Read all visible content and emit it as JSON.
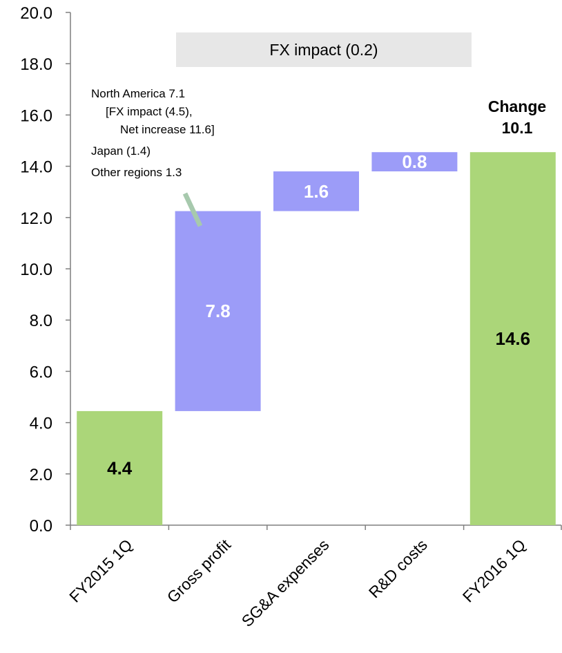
{
  "chart_data": {
    "type": "waterfall",
    "ylim": [
      0,
      20
    ],
    "y_ticks": [
      "0.0",
      "2.0",
      "4.0",
      "6.0",
      "8.0",
      "10.0",
      "12.0",
      "14.0",
      "16.0",
      "18.0",
      "20.0"
    ],
    "bars": [
      {
        "category": "FY2015 1Q",
        "start": 0,
        "end": 4.45,
        "label": "4.4",
        "kind": "total"
      },
      {
        "category": "Gross profit",
        "start": 4.45,
        "end": 12.25,
        "label": "7.8",
        "kind": "delta"
      },
      {
        "category": "SG&A expenses",
        "start": 12.25,
        "end": 13.8,
        "label": "1.6",
        "kind": "delta"
      },
      {
        "category": "R&D costs",
        "start": 13.8,
        "end": 14.55,
        "label": "0.8",
        "kind": "delta"
      },
      {
        "category": "FY2016 1Q",
        "start": 0,
        "end": 14.55,
        "label": "14.6",
        "kind": "total"
      }
    ],
    "fx_banner": "FX impact (0.2)",
    "annotation_lines": [
      "North America 7.1",
      "[FX impact (4.5),",
      "Net increase 11.6]",
      "Japan (1.4)",
      "Other regions 1.3"
    ],
    "change_title": "Change",
    "change_value": "10.1",
    "colors": {
      "total": "#abd679",
      "delta": "#9c9cf8",
      "banner": "#e7e7e7",
      "leader": "#a7c9ad",
      "axis": "#7f7f7f",
      "total_label": "#000000",
      "delta_label": "#ffffff"
    }
  }
}
